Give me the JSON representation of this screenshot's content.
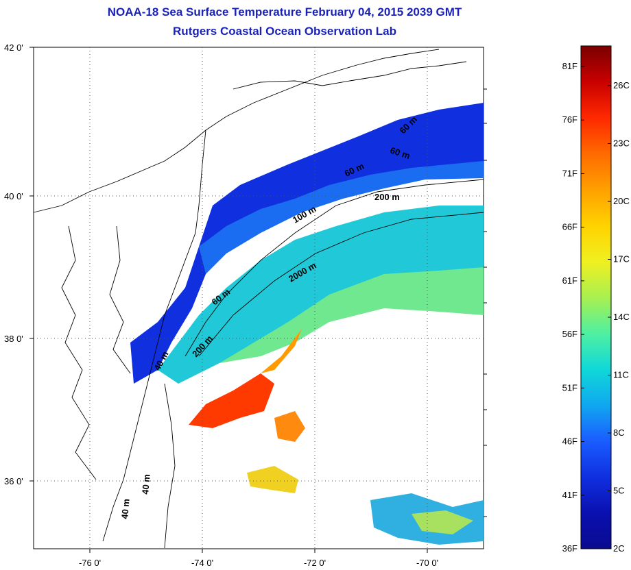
{
  "header": {
    "title": "NOAA-18 Sea Surface Temperature February 04, 2015 2039 GMT",
    "subtitle": "Rutgers Coastal Ocean Observation Lab"
  },
  "axes": {
    "lat_ticks": [
      "42 0'",
      "40 0'",
      "38 0'",
      "36 0'"
    ],
    "lon_ticks": [
      "-76 0'",
      "-74 0'",
      "-72 0'",
      "-70 0'"
    ],
    "grid": "dotted"
  },
  "contour_labels": [
    "40 m",
    "60 m",
    "200 m",
    "60 m",
    "100 m",
    "2000 m",
    "60 m",
    "60 m",
    "200 m",
    "40 m",
    "40 m"
  ],
  "colorbar": {
    "fahrenheit": [
      "81F",
      "76F",
      "71F",
      "66F",
      "61F",
      "56F",
      "51F",
      "46F",
      "41F",
      "36F"
    ],
    "celsius": [
      "26C",
      "23C",
      "20C",
      "17C",
      "14C",
      "11C",
      "8C",
      "5C",
      "2C"
    ],
    "colors": [
      "#7a0000",
      "#c80000",
      "#ff2800",
      "#ff6a00",
      "#ffa000",
      "#ffd200",
      "#f0f020",
      "#a8f050",
      "#50f0a0",
      "#10d8d8",
      "#10a8f0",
      "#1a5cff",
      "#1030e0",
      "#0a10b0",
      "#0a0a90"
    ]
  }
}
